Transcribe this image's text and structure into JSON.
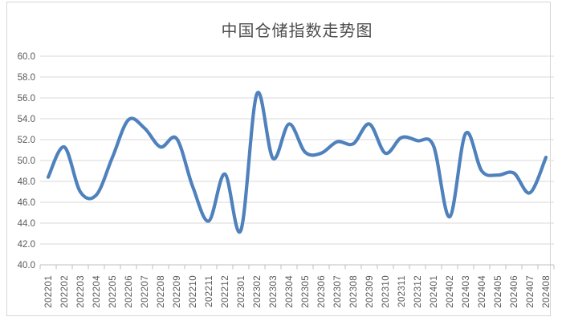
{
  "chart_data": {
    "type": "line",
    "title": "中国仓储指数走势图",
    "categories": [
      "202201",
      "202202",
      "202203",
      "202204",
      "202205",
      "202206",
      "202207",
      "202208",
      "202209",
      "202210",
      "202211",
      "202212",
      "202301",
      "202302",
      "202303",
      "202304",
      "202305",
      "202306",
      "202307",
      "202308",
      "202309",
      "202310",
      "202311",
      "202312",
      "202401",
      "202402",
      "202403",
      "202404",
      "202405",
      "202406",
      "202407",
      "202408"
    ],
    "values": [
      48.4,
      51.3,
      47.0,
      46.7,
      50.3,
      53.9,
      53.1,
      51.3,
      52.1,
      47.5,
      44.2,
      48.7,
      43.3,
      56.4,
      50.2,
      53.5,
      50.8,
      50.7,
      51.8,
      51.6,
      53.5,
      50.7,
      52.2,
      51.9,
      51.4,
      44.6,
      52.6,
      49.0,
      48.6,
      48.8,
      46.9,
      50.3
    ],
    "ylim": [
      40,
      60
    ],
    "ytick_step": 2,
    "ytick_labels": [
      "60.0",
      "58.0",
      "56.0",
      "54.0",
      "52.0",
      "50.0",
      "48.0",
      "46.0",
      "44.0",
      "42.0",
      "40.0"
    ],
    "xlabel": "",
    "ylabel": "",
    "grid": true,
    "legend": "none",
    "smooth": true,
    "colors": {
      "line": "#4F81BD",
      "grid": "#D9D9D9",
      "axis_line": "#BFBFBF",
      "axis_text": "#595959",
      "title_text": "#4D4D4D",
      "border": "#D6D6D6",
      "background": "#FFFFFF"
    }
  }
}
